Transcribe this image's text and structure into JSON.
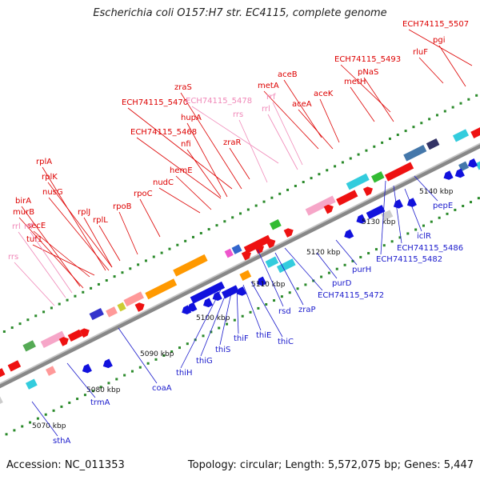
{
  "title": "Escherichia coli O157:H7 str. EC4115, complete genome",
  "footer": {
    "accession": "Accession: NC_011353",
    "topology": "Topology: circular; Length: 5,572,075 bp; Genes: 5,447"
  },
  "colors": {
    "backbone": "#888888",
    "red_label": "#dd0000",
    "pink_label": "#f088b8",
    "blue_label": "#1a1acc",
    "forward": "#ee1111",
    "reverse": "#1111dd"
  },
  "kbp_ticks": [
    "5070 kbp",
    "5080 kbp",
    "5090 kbp",
    "5100 kbp",
    "5110 kbp",
    "5120 kbp",
    "5130 kbp",
    "5140 kbp"
  ],
  "top_labels": [
    {
      "text": "ECH74115_5507",
      "color": "red"
    },
    {
      "text": "pgi",
      "color": "red"
    },
    {
      "text": "rluF",
      "color": "red"
    },
    {
      "text": "ECH74115_5493",
      "color": "red"
    },
    {
      "text": "pNaS",
      "color": "red"
    },
    {
      "text": "metH",
      "color": "red"
    },
    {
      "text": "aceB",
      "color": "red"
    },
    {
      "text": "metA",
      "color": "red"
    },
    {
      "text": "aceK",
      "color": "red"
    },
    {
      "text": "aceA",
      "color": "red"
    },
    {
      "text": "rrf",
      "color": "pink"
    },
    {
      "text": "rrl",
      "color": "pink"
    },
    {
      "text": "zraS",
      "color": "red"
    },
    {
      "text": "ECH74115_5470",
      "color": "red"
    },
    {
      "text": "ECH74115_5478",
      "color": "pink"
    },
    {
      "text": "rrs",
      "color": "pink"
    },
    {
      "text": "hupA",
      "color": "red"
    },
    {
      "text": "ECH74115_5468",
      "color": "red"
    },
    {
      "text": "nfi",
      "color": "red"
    },
    {
      "text": "zraR",
      "color": "red"
    },
    {
      "text": "hemE",
      "color": "red"
    },
    {
      "text": "nudC",
      "color": "red"
    },
    {
      "text": "rpoC",
      "color": "red"
    },
    {
      "text": "rpoB",
      "color": "red"
    },
    {
      "text": "rplA",
      "color": "red"
    },
    {
      "text": "rplK",
      "color": "red"
    },
    {
      "text": "nusG",
      "color": "red"
    },
    {
      "text": "birA",
      "color": "red"
    },
    {
      "text": "murB",
      "color": "red"
    },
    {
      "text": "secE",
      "color": "red"
    },
    {
      "text": "tuf1",
      "color": "red"
    },
    {
      "text": "rplJ",
      "color": "red"
    },
    {
      "text": "rplL",
      "color": "red"
    },
    {
      "text": "rrl",
      "color": "pink"
    },
    {
      "text": "rrf",
      "color": "pink"
    },
    {
      "text": "rrs",
      "color": "pink"
    }
  ],
  "bottom_labels": [
    {
      "text": "pepE",
      "color": "blue"
    },
    {
      "text": "iclR",
      "color": "blue"
    },
    {
      "text": "ECH74115_5486",
      "color": "blue"
    },
    {
      "text": "ECH74115_5482",
      "color": "blue"
    },
    {
      "text": "purH",
      "color": "blue"
    },
    {
      "text": "purD",
      "color": "blue"
    },
    {
      "text": "ECH74115_5472",
      "color": "blue"
    },
    {
      "text": "zraP",
      "color": "blue"
    },
    {
      "text": "rsd",
      "color": "blue"
    },
    {
      "text": "thiC",
      "color": "blue"
    },
    {
      "text": "thiE",
      "color": "blue"
    },
    {
      "text": "thiF",
      "color": "blue"
    },
    {
      "text": "thiS",
      "color": "blue"
    },
    {
      "text": "thiG",
      "color": "blue"
    },
    {
      "text": "thiH",
      "color": "blue"
    },
    {
      "text": "coaA",
      "color": "blue"
    },
    {
      "text": "trmA",
      "color": "blue"
    },
    {
      "text": "sthA",
      "color": "blue"
    }
  ]
}
